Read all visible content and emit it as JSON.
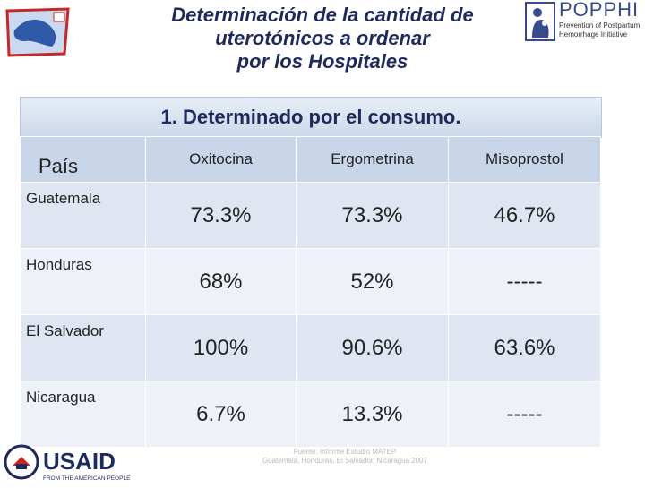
{
  "title": {
    "line1": "Determinación de la cantidad de",
    "line2": "uterotónicos  a ordenar",
    "line3": "por los Hospitales"
  },
  "subtitle": "1. Determinado por el consumo.",
  "logos": {
    "top_right_name": "POPPHI",
    "top_right_tagline_1": "Prevention of Postpartum",
    "top_right_tagline_2": "Hemorrhage Initiative",
    "bottom_left_name": "USAID",
    "bottom_left_tagline": "FROM THE AMERICAN PEOPLE"
  },
  "table": {
    "headers": [
      "País",
      "Oxitocina",
      "Ergometrina",
      "Misoprostol"
    ],
    "rows": [
      {
        "country": "Guatemala",
        "values": [
          "73.3%",
          "73.3%",
          "46.7%"
        ]
      },
      {
        "country": "Honduras",
        "values": [
          "68%",
          "52%",
          "-----"
        ]
      },
      {
        "country": "El Salvador",
        "values": [
          "100%",
          "90.6%",
          "63.6%"
        ]
      },
      {
        "country": "Nicaragua",
        "values": [
          "6.7%",
          "13.3%",
          "-----"
        ]
      }
    ]
  },
  "source": {
    "line1": "Fuente: Informe Estudio MATEP",
    "line2": "Guatemala, Honduras, El Salvador, Nicaragua 2007"
  }
}
